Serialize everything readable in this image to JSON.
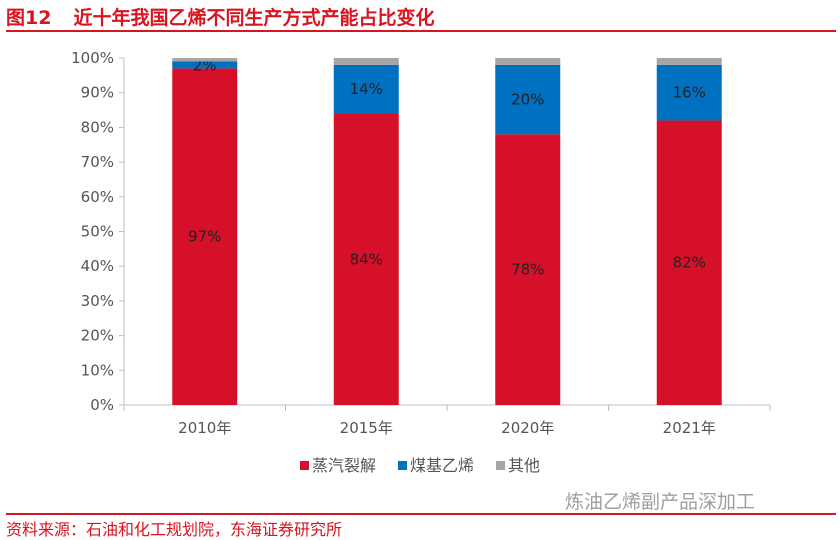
{
  "title": {
    "figure_number": "图12",
    "text": "近十年我国乙烯不同生产方式产能占比变化"
  },
  "source": "资料来源：石油和化工规划院，东海证券研究所",
  "watermark": "炼油乙烯副产品深加工",
  "chart_data": {
    "type": "stacked-bar",
    "title": "近十年我国乙烯不同生产方式产能占比变化",
    "categories": [
      "2010年",
      "2015年",
      "2020年",
      "2021年"
    ],
    "series": [
      {
        "name": "蒸汽裂解",
        "color": "#d7102a",
        "values": [
          97,
          84,
          78,
          82
        ],
        "labels": [
          "97%",
          "84%",
          "78%",
          "82%"
        ]
      },
      {
        "name": "煤基乙烯",
        "color": "#0070c0",
        "values": [
          2,
          14,
          20,
          16
        ],
        "labels": [
          "2%",
          "14%",
          "20%",
          "16%"
        ]
      },
      {
        "name": "其他",
        "color": "#a6a6a6",
        "values": [
          1,
          2,
          2,
          2
        ],
        "labels": []
      }
    ],
    "ylim": [
      0,
      100
    ],
    "yticks": [
      "0%",
      "10%",
      "20%",
      "30%",
      "40%",
      "50%",
      "60%",
      "70%",
      "80%",
      "90%",
      "100%"
    ],
    "grid": false,
    "legend_position": "bottom"
  }
}
